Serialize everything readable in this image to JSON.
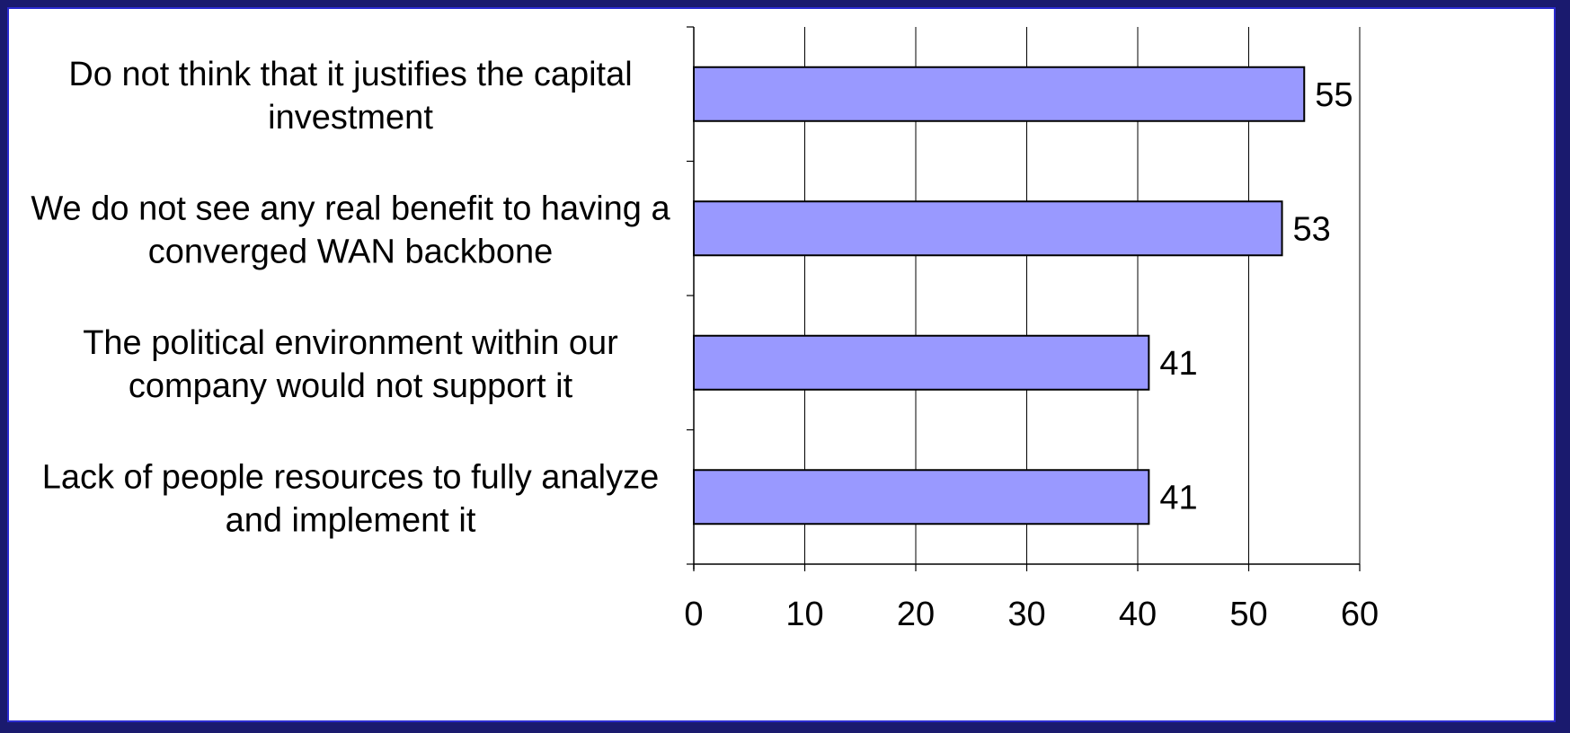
{
  "chart_data": {
    "type": "bar",
    "orientation": "horizontal",
    "categories": [
      "Do not think that it justifies the capital investment",
      "We do not see any real benefit to having a converged WAN backbone",
      "The political environment within our company would not support it",
      "Lack of people resources to fully analyze and implement it"
    ],
    "category_lines": [
      [
        "Do not think that it justifies the capital",
        "investment"
      ],
      [
        "We do not see any real benefit to having a",
        "converged WAN backbone"
      ],
      [
        "The political environment within our",
        "company would not support it"
      ],
      [
        "Lack of people resources to fully analyze",
        "and implement it"
      ]
    ],
    "values": [
      55,
      53,
      41,
      41
    ],
    "data_labels": [
      "55",
      "53",
      "41",
      "41"
    ],
    "xlim": [
      0,
      60
    ],
    "xticks": [
      0,
      10,
      20,
      30,
      40,
      50,
      60
    ],
    "xtick_labels": [
      "0",
      "10",
      "20",
      "30",
      "40",
      "50",
      "60"
    ],
    "grid": true,
    "legend": "none",
    "colors": {
      "bar": "#9999ff",
      "bar_stroke": "#000000",
      "frame": "#2b2bd0",
      "background": "#1a1a6e"
    }
  }
}
